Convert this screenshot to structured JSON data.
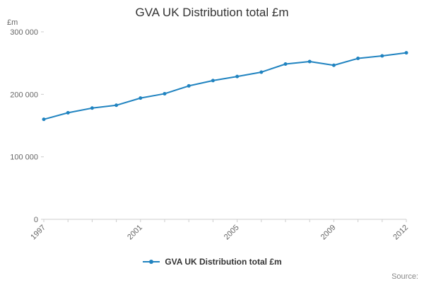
{
  "page": {
    "title": "GVA UK Distribution total £m",
    "y_unit_label": "£m",
    "source_label": "Source:"
  },
  "legend": {
    "label": "GVA UK Distribution total £m"
  },
  "colors": {
    "line": "#2083c0",
    "title_text": "#333333",
    "axis_text": "#666666",
    "axis_line": "#cccccc",
    "legend_text": "#333333",
    "source_text": "#888888"
  },
  "chart_data": {
    "type": "line",
    "title": "GVA UK Distribution total £m",
    "xlabel": "",
    "ylabel": "£m",
    "x": [
      1997,
      1998,
      1999,
      2000,
      2001,
      2002,
      2003,
      2004,
      2005,
      2006,
      2007,
      2008,
      2009,
      2010,
      2011,
      2012
    ],
    "series": [
      {
        "name": "GVA UK Distribution total £m",
        "values": [
          160000,
          170500,
          178000,
          182500,
          194000,
          201000,
          213500,
          222000,
          228500,
          235500,
          248500,
          252500,
          246500,
          257500,
          261500,
          266500
        ]
      }
    ],
    "ylim": [
      0,
      300000
    ],
    "yticks": [
      0,
      100000,
      200000,
      300000
    ],
    "ytick_labels": [
      "0",
      "100 000",
      "200 000",
      "300 000"
    ],
    "xtick_years": [
      1997,
      2001,
      2005,
      2009,
      2012
    ],
    "grid": false,
    "legend_position": "bottom",
    "marker": "circle"
  }
}
